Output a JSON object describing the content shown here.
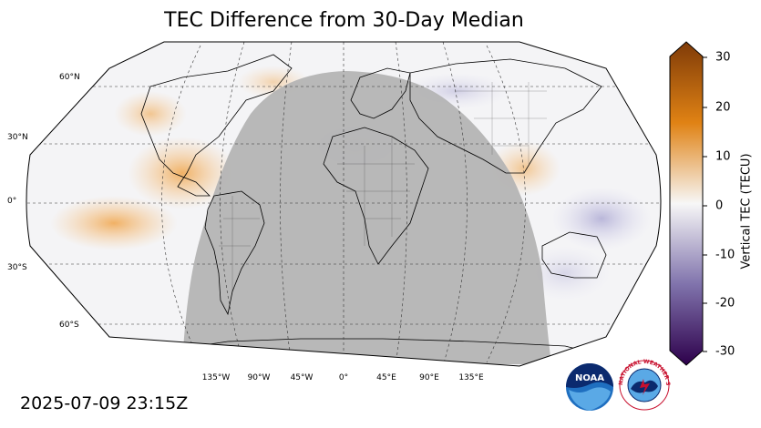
{
  "title": "TEC Difference from 30-Day Median",
  "timestamp": "2025-07-09 23:15Z",
  "map": {
    "lat_labels": [
      "60°N",
      "30°N",
      "0°",
      "30°S",
      "60°S"
    ],
    "lon_labels": [
      "135°W",
      "90°W",
      "45°W",
      "0°",
      "45°E",
      "90°E",
      "135°E"
    ],
    "night_shading_color": "#b4b4b4",
    "ocean_color": "#f4f4f6"
  },
  "colorbar": {
    "label": "Vertical TEC (TECU)",
    "ticks": [
      "30",
      "20",
      "10",
      "0",
      "-10",
      "-20",
      "-30"
    ],
    "range": [
      -30,
      30
    ],
    "colors": {
      "max": "#7f3b08",
      "positive_mid": "#e08214",
      "zero": "#f7f7f7",
      "negative_mid": "#8073ac",
      "min": "#2d004b"
    }
  },
  "logos": {
    "noaa_text": "NOAA",
    "nws_text": "NATIONAL WEATHER SERVICE"
  }
}
